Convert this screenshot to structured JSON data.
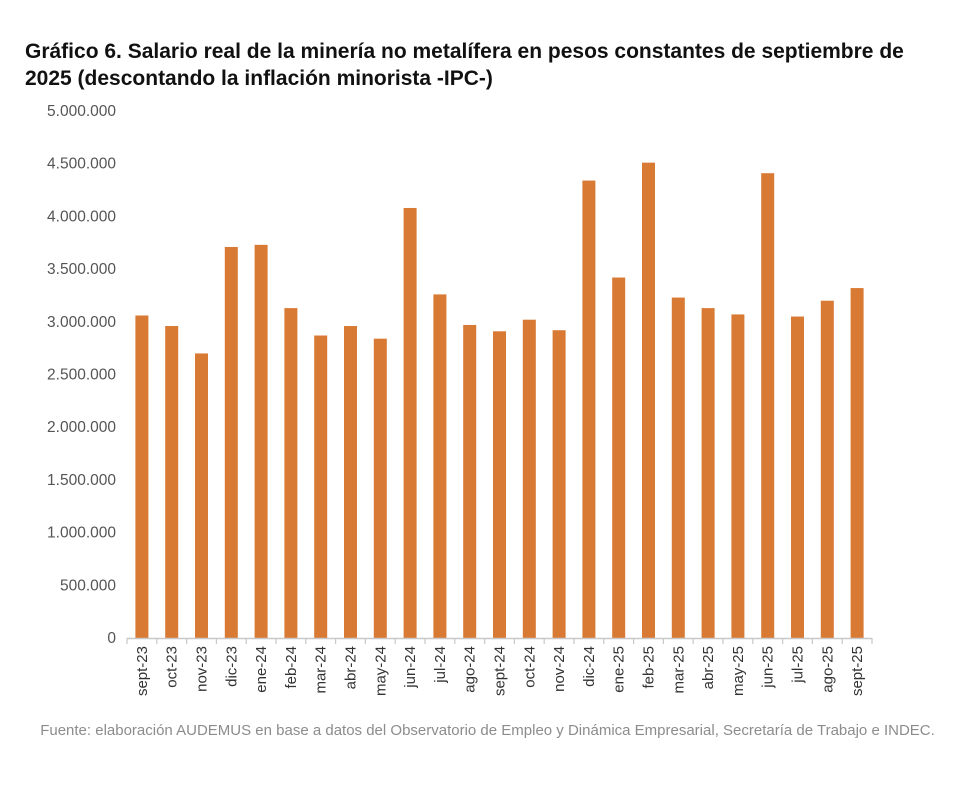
{
  "chart_data": {
    "type": "bar",
    "title": "Gráfico 6. Salario real de la minería no metalífera en pesos constantes de septiembre de 2025 (descontando la inflación minorista -IPC-)",
    "xlabel": "",
    "ylabel": "",
    "ylim": [
      0,
      5000000
    ],
    "ytick_values": [
      0,
      500000,
      1000000,
      1500000,
      2000000,
      2500000,
      3000000,
      3500000,
      4000000,
      4500000,
      5000000
    ],
    "ytick_labels": [
      "0",
      "500.000",
      "1.000.000",
      "1.500.000",
      "2.000.000",
      "2.500.000",
      "3.000.000",
      "3.500.000",
      "4.000.000",
      "4.500.000",
      "5.000.000"
    ],
    "categories": [
      "sept-23",
      "oct-23",
      "nov-23",
      "dic-23",
      "ene-24",
      "feb-24",
      "mar-24",
      "abr-24",
      "may-24",
      "jun-24",
      "jul-24",
      "ago-24",
      "sept-24",
      "oct-24",
      "nov-24",
      "dic-24",
      "ene-25",
      "feb-25",
      "mar-25",
      "abr-25",
      "may-25",
      "jun-25",
      "jul-25",
      "ago-25",
      "sept-25"
    ],
    "values": [
      3060000,
      2960000,
      2700000,
      3710000,
      3730000,
      3130000,
      2870000,
      2960000,
      2840000,
      4080000,
      3260000,
      2970000,
      2910000,
      3020000,
      2920000,
      4340000,
      3420000,
      4510000,
      3230000,
      3130000,
      3070000,
      4410000,
      3050000,
      3200000,
      3320000
    ],
    "bar_color": "#d97a34",
    "axis_color": "#c8c8c8",
    "grid": false,
    "legend": "none"
  },
  "source": "Fuente: elaboración AUDEMUS en base a datos del Observatorio de Empleo y Dinámica Empresarial, Secretaría de Trabajo e INDEC."
}
